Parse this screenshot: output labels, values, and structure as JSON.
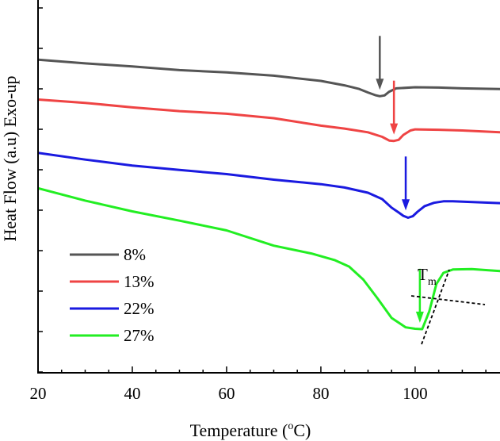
{
  "chart_data": {
    "type": "line",
    "xlabel": "Temperature",
    "xlabel_sup": "o",
    "xlabel_unit": "C)",
    "xlabel_open": " (",
    "ylabel": "Heat Flow (a.u)  Exo-up",
    "xlim": [
      20,
      118
    ],
    "x_ticks": [
      "20",
      "40",
      "60",
      "80",
      "100"
    ],
    "y_ticks_labeled": false,
    "grid": false,
    "legend_position": "lower-left",
    "annotation": {
      "text": "T",
      "subscript": "m"
    },
    "series": [
      {
        "name": "8%",
        "color": "#555555",
        "x": [
          20,
          30,
          40,
          50,
          60,
          70,
          80,
          85,
          88,
          90,
          91.5,
          92.5,
          93.5,
          94.5,
          96,
          100,
          105,
          110,
          118
        ],
        "y": [
          0.84,
          0.83,
          0.822,
          0.812,
          0.806,
          0.797,
          0.783,
          0.771,
          0.762,
          0.752,
          0.745,
          0.742,
          0.744,
          0.754,
          0.763,
          0.766,
          0.765,
          0.763,
          0.761
        ],
        "arrow_x": 92.5
      },
      {
        "name": "13%",
        "color": "#ef4444",
        "x": [
          20,
          30,
          40,
          50,
          60,
          70,
          80,
          85,
          90,
          93,
          94.5,
          95.5,
          96.5,
          97.5,
          99,
          100,
          105,
          110,
          118
        ],
        "y": [
          0.733,
          0.724,
          0.712,
          0.702,
          0.695,
          0.683,
          0.663,
          0.655,
          0.645,
          0.633,
          0.623,
          0.622,
          0.625,
          0.638,
          0.65,
          0.653,
          0.652,
          0.65,
          0.645
        ],
        "arrow_x": 95.5
      },
      {
        "name": "22%",
        "color": "#1a1ae0",
        "x": [
          20,
          30,
          40,
          50,
          60,
          70,
          80,
          85,
          90,
          93,
          95,
          96.5,
          97.5,
          98.5,
          99.5,
          100.5,
          102,
          104,
          106,
          108,
          118
        ],
        "y": [
          0.59,
          0.572,
          0.556,
          0.544,
          0.533,
          0.518,
          0.506,
          0.497,
          0.483,
          0.466,
          0.443,
          0.43,
          0.421,
          0.416,
          0.42,
          0.432,
          0.447,
          0.456,
          0.46,
          0.46,
          0.455
        ],
        "arrow_x": 98
      },
      {
        "name": "27%",
        "color": "#22ee22",
        "x": [
          20,
          30,
          40,
          50,
          60,
          70,
          78,
          83,
          86,
          89,
          92,
          95,
          98,
          100,
          101.5,
          103,
          104.5,
          106,
          108,
          112,
          118
        ],
        "y": [
          0.495,
          0.462,
          0.433,
          0.408,
          0.382,
          0.341,
          0.32,
          0.302,
          0.285,
          0.25,
          0.2,
          0.147,
          0.122,
          0.118,
          0.117,
          0.165,
          0.238,
          0.268,
          0.277,
          0.278,
          0.273
        ],
        "arrow_x": 101
      }
    ]
  }
}
